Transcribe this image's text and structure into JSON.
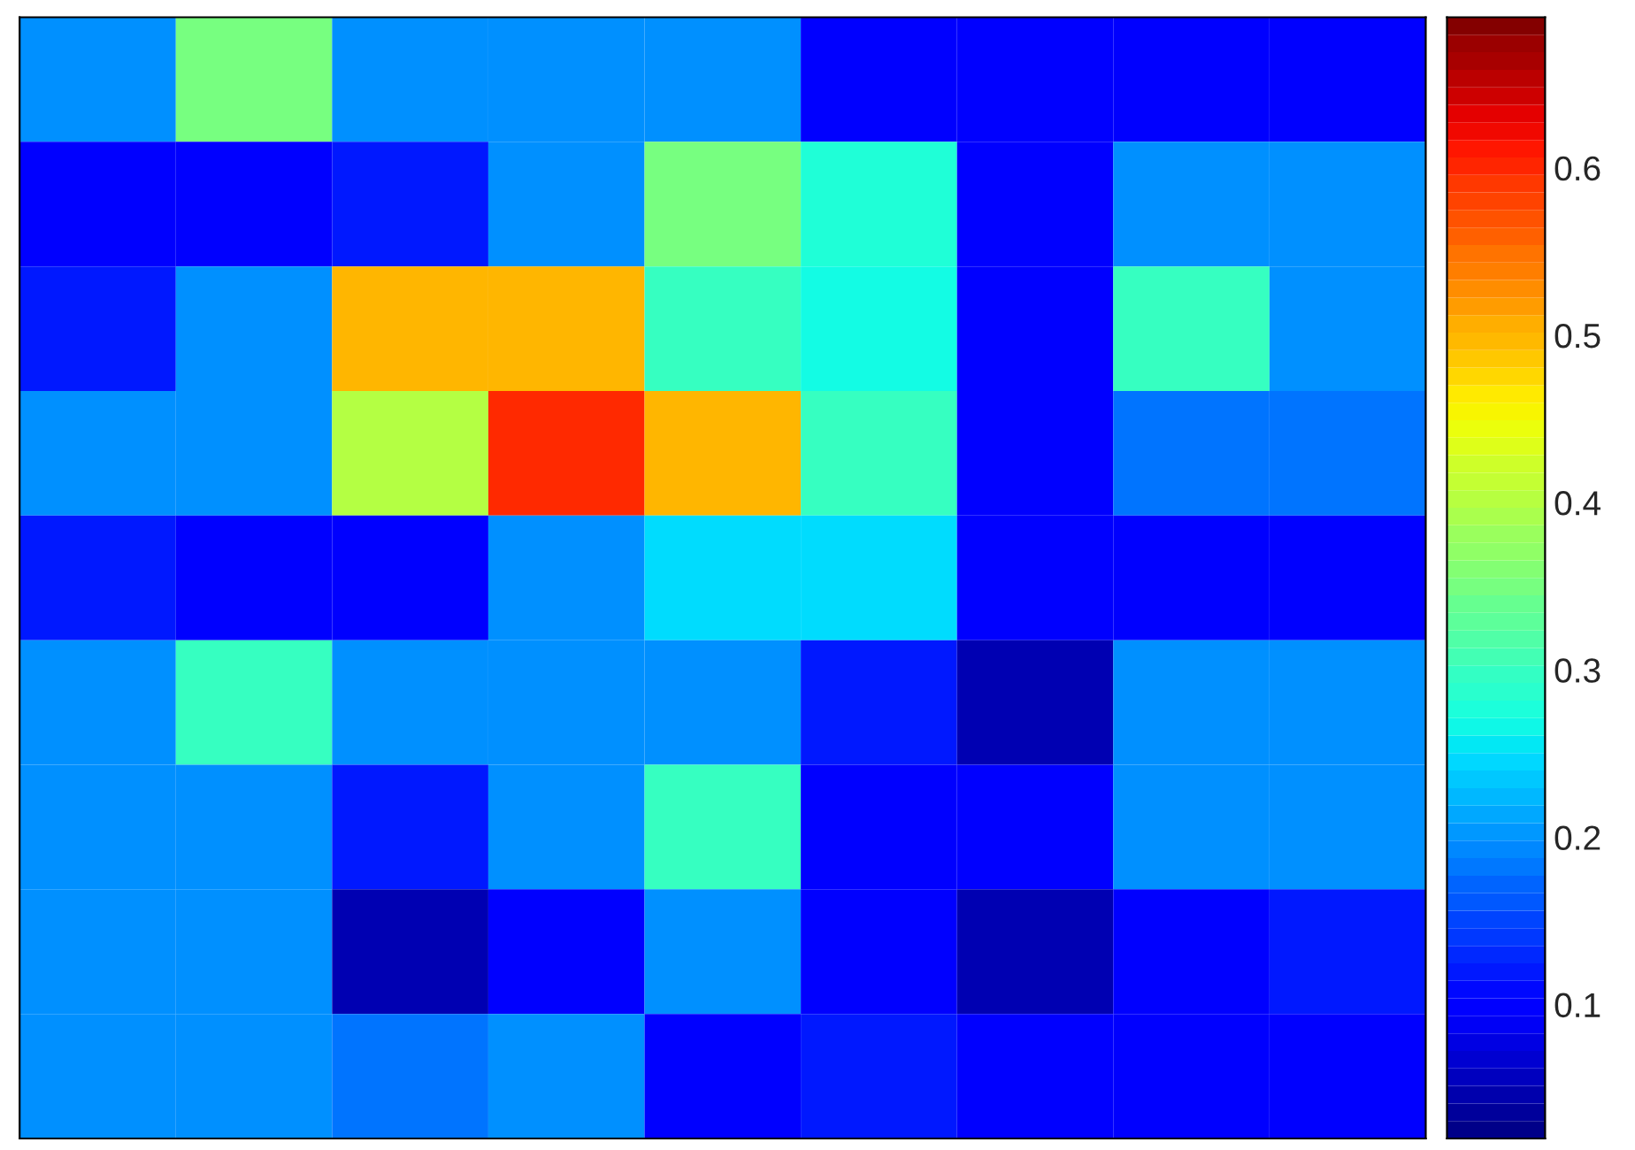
{
  "chart_data": {
    "type": "heatmap",
    "categories": [
      null,
      null,
      null,
      null,
      null,
      null,
      null,
      null,
      null
    ],
    "y_categories": [
      null,
      null,
      null,
      null,
      null,
      null,
      null,
      null,
      null
    ],
    "cells": [
      [
        0.2,
        0.35,
        0.2,
        0.2,
        0.2,
        0.1,
        0.1,
        0.1,
        0.1
      ],
      [
        0.1,
        0.1,
        0.12,
        0.2,
        0.35,
        0.28,
        0.1,
        0.2,
        0.2
      ],
      [
        0.12,
        0.2,
        0.5,
        0.5,
        0.3,
        0.27,
        0.1,
        0.3,
        0.2
      ],
      [
        0.2,
        0.2,
        0.4,
        0.6,
        0.5,
        0.3,
        0.1,
        0.18,
        0.18
      ],
      [
        0.12,
        0.1,
        0.1,
        0.2,
        0.25,
        0.25,
        0.1,
        0.1,
        0.1
      ],
      [
        0.2,
        0.3,
        0.2,
        0.2,
        0.2,
        0.12,
        0.05,
        0.2,
        0.2
      ],
      [
        0.2,
        0.2,
        0.12,
        0.2,
        0.3,
        0.1,
        0.1,
        0.2,
        0.2
      ],
      [
        0.2,
        0.2,
        0.05,
        0.1,
        0.2,
        0.1,
        0.05,
        0.1,
        0.12
      ],
      [
        0.2,
        0.2,
        0.18,
        0.2,
        0.1,
        0.12,
        0.1,
        0.1,
        0.1
      ]
    ],
    "clim": [
      0.02,
      0.69
    ],
    "cticks": [
      0.1,
      0.2,
      0.3,
      0.4,
      0.5,
      0.6
    ]
  }
}
